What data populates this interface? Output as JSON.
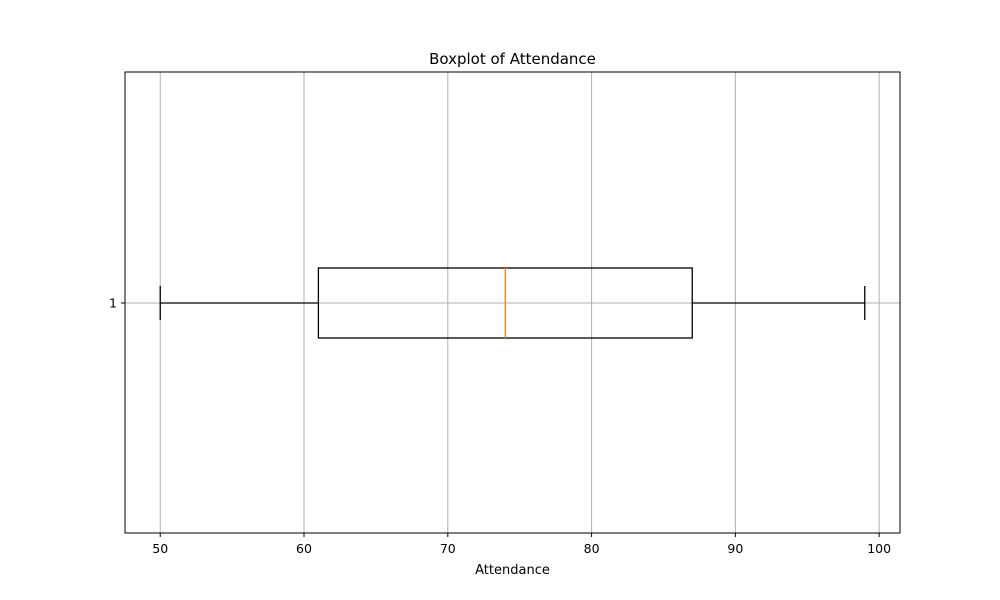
{
  "chart_data": {
    "type": "boxplot",
    "orientation": "horizontal",
    "title": "Boxplot of Attendance",
    "xlabel": "Attendance",
    "ylabel": "",
    "xlim": [
      47.55,
      101.45
    ],
    "xticks": [
      50,
      60,
      70,
      80,
      90,
      100
    ],
    "xtick_labels": [
      "50",
      "60",
      "70",
      "80",
      "90",
      "100"
    ],
    "yticks": [
      1
    ],
    "ytick_labels": [
      "1"
    ],
    "grid": true,
    "boxes": [
      {
        "position": 1,
        "whisker_low": 50,
        "q1": 61,
        "median": 74,
        "q3": 87,
        "whisker_high": 99
      }
    ],
    "colors": {
      "box": "#000000",
      "median": "#ff7f0e",
      "grid": "#b0b0b0",
      "axes": "#000000"
    }
  }
}
